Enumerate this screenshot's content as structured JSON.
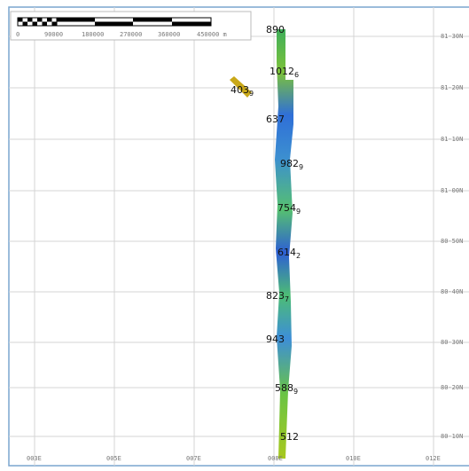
{
  "scale_bar": {
    "labels": [
      "0",
      "90000",
      "180000",
      "270000",
      "360000",
      "450000 m"
    ]
  },
  "latitude_labels": [
    "81-30N",
    "81-20N",
    "81-10N",
    "81-00N",
    "80-50N",
    "80-40N",
    "80-30N",
    "80-20N",
    "80-10N"
  ],
  "longitude_labels": [
    "003E",
    "005E",
    "007E",
    "008E",
    "010E",
    "012E"
  ],
  "soundings": [
    {
      "depth": "890"
    },
    {
      "depth": "1012",
      "sub": "6"
    },
    {
      "depth": "403",
      "sub": "9"
    },
    {
      "depth": "637"
    },
    {
      "depth": "982",
      "sub": "9"
    },
    {
      "depth": "754",
      "sub": "9"
    },
    {
      "depth": "614",
      "sub": "2"
    },
    {
      "depth": "823",
      "sub": "7"
    },
    {
      "depth": "943"
    },
    {
      "depth": "588",
      "sub": "9"
    },
    {
      "depth": "512"
    }
  ]
}
